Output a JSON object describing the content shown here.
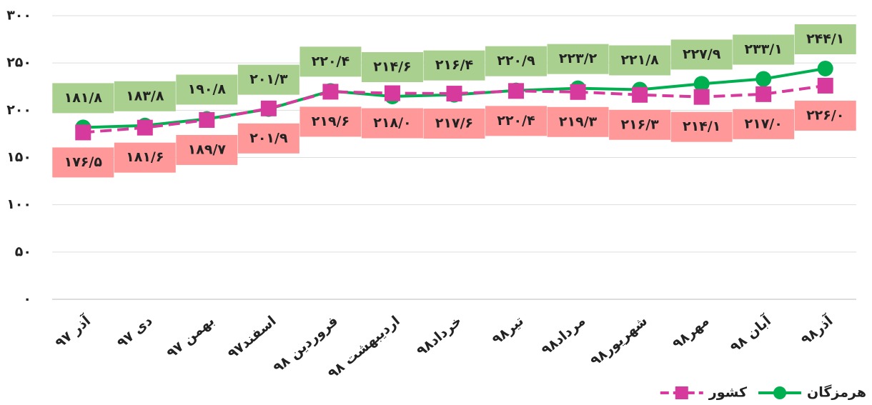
{
  "chart_data": {
    "type": "line",
    "categories": [
      "آذر ۹۷",
      "دی ۹۷",
      "بهمن ۹۷",
      "اسفند۹۷",
      "فروردین ۹۸",
      "اردیبهشت ۹۸",
      "خرداد۹۸",
      "تیر۹۸",
      "مرداد۹۸",
      "شهریور۹۸",
      "مهر۹۸",
      "آبان ۹۸",
      "آذر۹۸"
    ],
    "series": [
      {
        "name": "هرمزگان",
        "color": "#00b050",
        "marker": "circle",
        "dash": false,
        "label_color": "#a9d08e",
        "values": [
          181.8,
          183.8,
          190.8,
          201.3,
          220.4,
          214.6,
          216.4,
          220.9,
          223.2,
          221.8,
          227.9,
          233.1,
          244.1
        ],
        "value_labels": [
          "۱۸۱/۸",
          "۱۸۳/۸",
          "۱۹۰/۸",
          "۲۰۱/۳",
          "۲۲۰/۴",
          "۲۱۴/۶",
          "۲۱۶/۴",
          "۲۲۰/۹",
          "۲۲۳/۲",
          "۲۲۱/۸",
          "۲۲۷/۹",
          "۲۳۳/۱",
          "۲۴۴/۱"
        ]
      },
      {
        "name": "کشور",
        "color": "#d63a9c",
        "marker": "square",
        "dash": true,
        "label_color": "#ff9999",
        "values": [
          176.5,
          181.6,
          189.7,
          201.9,
          219.6,
          218.0,
          217.6,
          220.4,
          219.3,
          216.3,
          214.1,
          217.0,
          226.0
        ],
        "value_labels": [
          "۱۷۶/۵",
          "۱۸۱/۶",
          "۱۸۹/۷",
          "۲۰۱/۹",
          "۲۱۹/۶",
          "۲۱۸/۰",
          "۲۱۷/۶",
          "۲۲۰/۴",
          "۲۱۹/۳",
          "۲۱۶/۳",
          "۲۱۴/۱",
          "۲۱۷/۰",
          "۲۲۶/۰"
        ]
      }
    ],
    "ylim": [
      0,
      300
    ],
    "yticks": [
      {
        "value": 0,
        "label": "۰"
      },
      {
        "value": 50,
        "label": "۵۰"
      },
      {
        "value": 100,
        "label": "۱۰۰"
      },
      {
        "value": 150,
        "label": "۱۵۰"
      },
      {
        "value": 200,
        "label": "۲۰۰"
      },
      {
        "value": 250,
        "label": "۲۵۰"
      },
      {
        "value": 300,
        "label": "۳۰۰"
      }
    ],
    "grid": true,
    "legend": "bottom-right"
  }
}
